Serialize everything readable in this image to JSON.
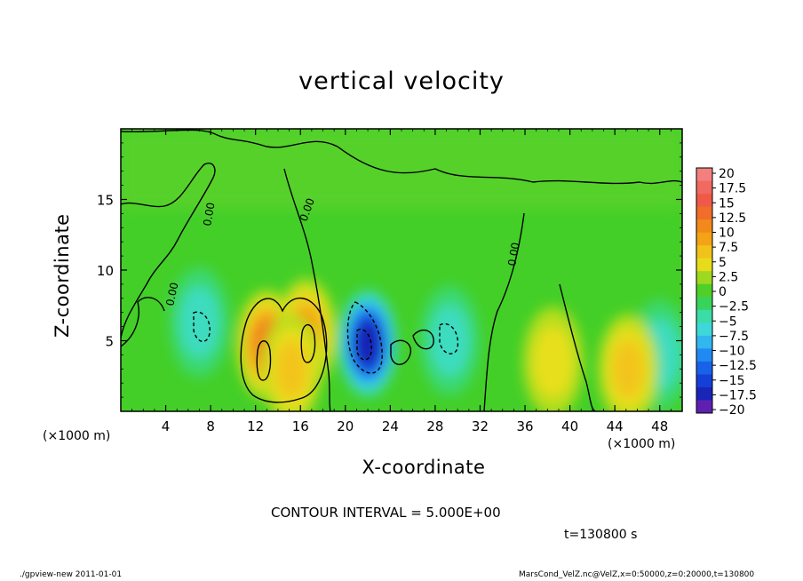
{
  "chart_data": {
    "type": "heatmap",
    "title": "vertical velocity",
    "xlabel": "X-coordinate",
    "ylabel": "Z-coordinate",
    "x_unit_label": "(×1000 m)",
    "x_ticks": [
      "4",
      "8",
      "12",
      "16",
      "20",
      "24",
      "28",
      "32",
      "36",
      "40",
      "44",
      "48"
    ],
    "x_tick_values": [
      4,
      8,
      12,
      16,
      20,
      24,
      28,
      32,
      36,
      40,
      44,
      48
    ],
    "y_ticks": [
      "5",
      "10",
      "15"
    ],
    "y_tick_values": [
      5,
      10,
      15
    ],
    "xlim": [
      0,
      50
    ],
    "ylim": [
      0,
      20
    ],
    "contour_interval_text": "CONTOUR INTERVAL = 5.000E+00",
    "contour_label": "0.00",
    "time_text": "t=130800 s",
    "colorbar": {
      "labels": [
        "20",
        "17.5",
        "15",
        "12.5",
        "10",
        "7.5",
        "5",
        "2.5",
        "0",
        "−2.5",
        "−5",
        "−7.5",
        "−10",
        "−12.5",
        "−15",
        "−17.5",
        "−20"
      ],
      "colors": [
        "#f47f7f",
        "#ef6a63",
        "#f2594a",
        "#f27a1f",
        "#f29e15",
        "#f3c51a",
        "#e8df1c",
        "#b6de1e",
        "#45cc2c",
        "#3bd870",
        "#3ddcc0",
        "#38c5ee",
        "#249cf2",
        "#1868ec",
        "#1438d6",
        "#1820b4",
        "#5f1fb0"
      ],
      "cells": [
        {
          "color": "#f47f7f"
        },
        {
          "color": "#f06a62"
        },
        {
          "color": "#ef5a48"
        },
        {
          "color": "#f06d2a"
        },
        {
          "color": "#f2891b"
        },
        {
          "color": "#f3a315"
        },
        {
          "color": "#f3c21a"
        },
        {
          "color": "#e6dc1c"
        },
        {
          "color": "#9ed81f"
        },
        {
          "color": "#4fcf28"
        },
        {
          "color": "#38d35a"
        },
        {
          "color": "#3cdca6"
        },
        {
          "color": "#3ed8da"
        },
        {
          "color": "#31b6ef"
        },
        {
          "color": "#208af2"
        },
        {
          "color": "#1862ea"
        },
        {
          "color": "#1440d8"
        },
        {
          "color": "#1a24b8"
        },
        {
          "color": "#5e20b0"
        }
      ]
    },
    "background_color": "#43cf28",
    "features": [
      {
        "kind": "updraft",
        "x": 13.0,
        "z": 4.7,
        "max": 12.5
      },
      {
        "kind": "updraft",
        "x": 16.5,
        "z": 5.5,
        "max": 10
      },
      {
        "kind": "updraft",
        "x": 15.2,
        "z": 3.0,
        "max": 7.5
      },
      {
        "kind": "downdraft",
        "x": 22.0,
        "z": 4.8,
        "min": -17.5
      },
      {
        "kind": "downdraft",
        "x": 29.3,
        "z": 5.0,
        "min": -5
      },
      {
        "kind": "downdraft",
        "x": 7.0,
        "z": 6.3,
        "min": -5
      },
      {
        "kind": "downdraft",
        "x": 48.0,
        "z": 4.0,
        "min": -5
      },
      {
        "kind": "updraft",
        "x": 45.2,
        "z": 3.0,
        "max": 7.5
      },
      {
        "kind": "updraft",
        "x": 38.5,
        "z": 3.5,
        "max": 5
      }
    ]
  },
  "footer": {
    "left": "./gpview-new   2011-01-01",
    "right": "MarsCond_VelZ.nc@VelZ,x=0:50000,z=0:20000,t=130800"
  }
}
